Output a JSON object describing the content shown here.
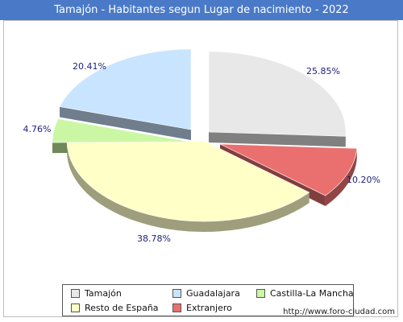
{
  "title": "Tamajón - Habitantes segun Lugar de nacimiento - 2022",
  "footer_url": "http://www.foro-ciudad.com",
  "chart_data": {
    "type": "pie",
    "title": "Tamajón - Habitantes segun Lugar de nacimiento - 2022",
    "legend_position": "bottom",
    "slices": [
      {
        "name": "Tamajón",
        "value": 25.85,
        "label": "25.85%",
        "color": "#e8e8e8"
      },
      {
        "name": "Extranjero",
        "value": 10.2,
        "label": "10.20%",
        "color": "#ea7070"
      },
      {
        "name": "Resto de España",
        "value": 38.78,
        "label": "38.78%",
        "color": "#ffffc8"
      },
      {
        "name": "Castilla-La Mancha",
        "value": 4.76,
        "label": "4.76%",
        "color": "#cbf7a5"
      },
      {
        "name": "Guadalajara",
        "value": 20.41,
        "label": "20.41%",
        "color": "#c9e4fe"
      }
    ],
    "legend_order": [
      "Tamajón",
      "Guadalajara",
      "Castilla-La Mancha",
      "Resto de España",
      "Extranjero"
    ]
  }
}
